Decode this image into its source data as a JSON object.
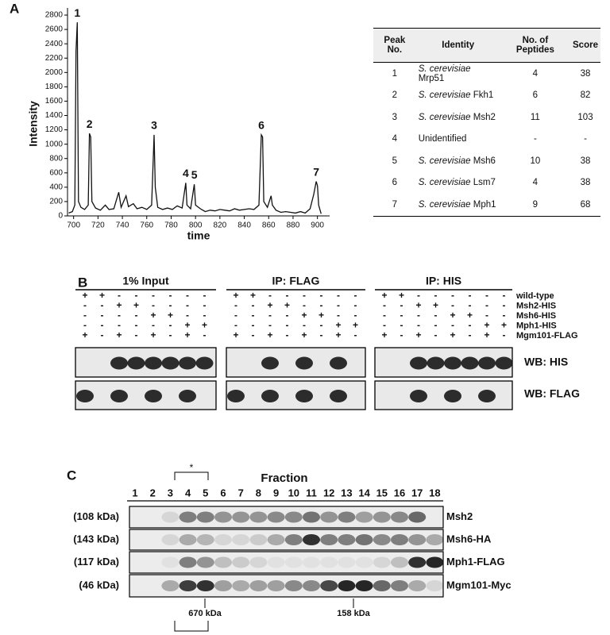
{
  "panel_labels": [
    "A",
    "B",
    "C"
  ],
  "chart_data": {
    "type": "line",
    "x_label": "time",
    "y_label": "Intensity",
    "color": "#111111",
    "x": [
      696,
      699,
      701,
      702,
      703,
      704,
      706,
      709,
      712,
      713,
      714,
      715,
      718,
      722,
      726,
      729,
      733,
      737,
      739,
      743,
      745,
      749,
      752,
      756,
      760,
      764,
      766,
      767,
      769,
      773,
      777,
      781,
      785,
      789,
      792,
      793,
      796,
      799,
      800,
      804,
      808,
      812,
      816,
      820,
      824,
      828,
      832,
      836,
      840,
      844,
      848,
      852,
      854,
      855,
      856,
      859,
      862,
      863,
      866,
      870,
      874,
      878,
      882,
      886,
      890,
      894,
      897,
      899,
      900,
      901,
      903
    ],
    "values": [
      40,
      60,
      150,
      2300,
      2700,
      200,
      120,
      90,
      150,
      1150,
      1100,
      200,
      110,
      80,
      150,
      90,
      100,
      330,
      120,
      280,
      130,
      170,
      100,
      120,
      90,
      150,
      1130,
      400,
      120,
      90,
      110,
      90,
      140,
      110,
      460,
      150,
      100,
      440,
      150,
      100,
      60,
      80,
      70,
      90,
      80,
      70,
      100,
      80,
      90,
      100,
      90,
      150,
      1130,
      1100,
      200,
      120,
      280,
      150,
      80,
      50,
      60,
      50,
      40,
      60,
      40,
      100,
      300,
      480,
      420,
      150,
      30
    ],
    "annotations": [
      {
        "text": "1",
        "x": 703,
        "y": 2700
      },
      {
        "text": "2",
        "x": 713,
        "y": 1150
      },
      {
        "text": "3",
        "x": 766,
        "y": 1130
      },
      {
        "text": "4",
        "x": 792,
        "y": 460
      },
      {
        "text": "5",
        "x": 799,
        "y": 440
      },
      {
        "text": "6",
        "x": 854,
        "y": 1130
      },
      {
        "text": "7",
        "x": 899,
        "y": 480
      }
    ],
    "xlim": [
      695,
      910
    ],
    "xticks": [
      700,
      720,
      740,
      760,
      780,
      800,
      820,
      840,
      860,
      880,
      900
    ],
    "ylim": [
      0,
      2900
    ],
    "yticks": [
      0,
      200,
      400,
      600,
      800,
      1000,
      1200,
      1400,
      1600,
      1800,
      2000,
      2200,
      2400,
      2600,
      2800
    ]
  },
  "table": {
    "header": [
      "Peak No.",
      "Identity",
      "No. of Peptides",
      "Score"
    ],
    "rows": [
      [
        "1",
        {
          "species": "S. cerevisiae",
          "name": "Mrp51"
        },
        "4",
        "38"
      ],
      [
        "2",
        {
          "species": "S. cerevisiae",
          "name": "Fkh1"
        },
        "6",
        "82"
      ],
      [
        "3",
        {
          "species": "S. cerevisiae",
          "name": "Msh2"
        },
        "11",
        "103"
      ],
      [
        "4",
        {
          "name": "Unidentified"
        },
        "-",
        "-"
      ],
      [
        "5",
        {
          "species": "S. cerevisiae",
          "name": "Msh6"
        },
        "10",
        "38"
      ],
      [
        "6",
        {
          "species": "S. cerevisiae",
          "name": "Lsm7"
        },
        "4",
        "38"
      ],
      [
        "7",
        {
          "species": "S. cerevisiae",
          "name": "Mph1"
        },
        "9",
        "68"
      ]
    ]
  },
  "blot_b": {
    "row_labels": [
      "wild-type",
      "Msh2-HIS",
      "Msh6-HIS",
      "Mph1-HIS",
      "Mgm101-FLAG"
    ],
    "wb_labels": [
      "WB: HIS",
      "WB: FLAG"
    ],
    "groups": [
      {
        "title": "1% Input",
        "signs": [
          [
            "+",
            "+",
            "-",
            "-",
            "-",
            "-",
            "-",
            "-"
          ],
          [
            "-",
            "-",
            "+",
            "+",
            "-",
            "-",
            "-",
            "-"
          ],
          [
            "-",
            "-",
            "-",
            "-",
            "+",
            "+",
            "-",
            "-"
          ],
          [
            "-",
            "-",
            "-",
            "-",
            "-",
            "-",
            "+",
            "+"
          ],
          [
            "+",
            "-",
            "+",
            "-",
            "+",
            "-",
            "+",
            "-"
          ]
        ]
      },
      {
        "title": "IP: FLAG",
        "signs": [
          [
            "+",
            "+",
            "-",
            "-",
            "-",
            "-",
            "-",
            "-"
          ],
          [
            "-",
            "-",
            "+",
            "+",
            "-",
            "-",
            "-",
            "-"
          ],
          [
            "-",
            "-",
            "-",
            "-",
            "+",
            "+",
            "-",
            "-"
          ],
          [
            "-",
            "-",
            "-",
            "-",
            "-",
            "-",
            "+",
            "+"
          ],
          [
            "+",
            "-",
            "+",
            "-",
            "+",
            "-",
            "+",
            "-"
          ]
        ]
      },
      {
        "title": "IP: HIS",
        "signs": [
          [
            "+",
            "+",
            "-",
            "-",
            "-",
            "-",
            "-",
            "-"
          ],
          [
            "-",
            "-",
            "+",
            "+",
            "-",
            "-",
            "-",
            "-"
          ],
          [
            "-",
            "-",
            "-",
            "-",
            "+",
            "+",
            "-",
            "-"
          ],
          [
            "-",
            "-",
            "-",
            "-",
            "-",
            "-",
            "+",
            "+"
          ],
          [
            "+",
            "-",
            "+",
            "-",
            "+",
            "-",
            "+",
            "-"
          ]
        ]
      }
    ]
  },
  "blot_c": {
    "star": "*",
    "axis_title": "Fraction",
    "fractions": [
      "1",
      "2",
      "3",
      "4",
      "5",
      "6",
      "7",
      "8",
      "9",
      "10",
      "11",
      "12",
      "13",
      "14",
      "15",
      "16",
      "17",
      "18"
    ],
    "rows": [
      {
        "size": "(108 kDa)",
        "name": "Msh2"
      },
      {
        "size": "(143 kDa)",
        "name": "Msh6-HA"
      },
      {
        "size": "(117 kDa)",
        "name": "Mph1-FLAG"
      },
      {
        "size": "(46 kDa)",
        "name": "Mgm101-Myc"
      }
    ],
    "markers": [
      "670 kDa",
      "158 kDa"
    ]
  }
}
